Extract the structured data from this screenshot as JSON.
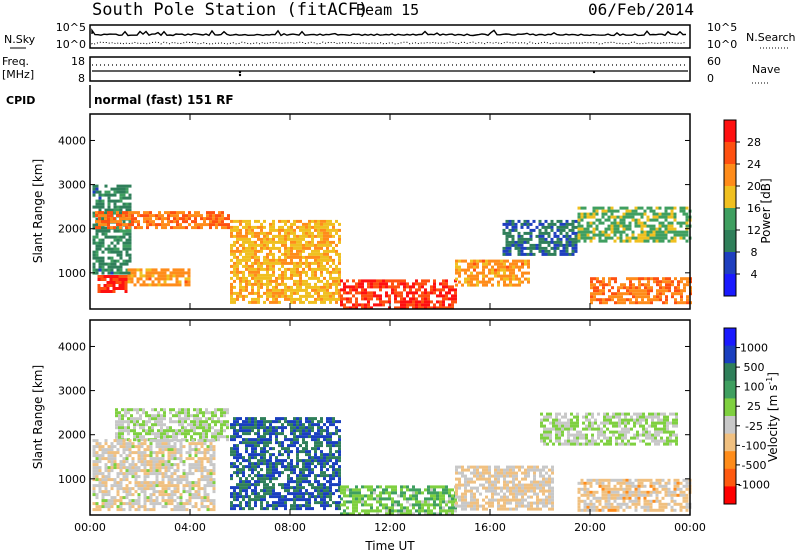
{
  "header": {
    "station": "South Pole Station (fitACF)",
    "beam": "Beam 15",
    "date": "06/Feb/2014"
  },
  "strip": {
    "nsky_label": "N.Sky",
    "nsky_tick_hi": "10^5",
    "nsky_tick_lo": "10^0",
    "nsearch_label": "N.Search",
    "nsearch_tick_hi": "10^5",
    "nsearch_tick_lo": "10^0",
    "freq_label_1": "Freq.",
    "freq_label_2": "[MHz]",
    "freq_tick_hi": "18",
    "freq_tick_lo": "8",
    "nave_label": "Nave",
    "nave_tick_hi": "60",
    "nave_tick_lo": "0",
    "cpid_label": "CPID",
    "cpid_text": "normal (fast) 151 RF"
  },
  "colors": {
    "power_scale": [
      "#1a1aff",
      "#1f3fbf",
      "#2f7f5a",
      "#3f9f60",
      "#f0c020",
      "#ff8c1a",
      "#ff5010",
      "#ff1010"
    ],
    "velocity_scale": [
      "#ff0000",
      "#ff5a10",
      "#ff8c1a",
      "#f0c080",
      "#c8c8c8",
      "#7fd040",
      "#3f9f60",
      "#2f7f5a",
      "#1a3fbf",
      "#1a1aff"
    ]
  },
  "chart_data": [
    {
      "type": "heatmap",
      "title": "",
      "xlabel": "",
      "ylabel": "Slant Range [km]",
      "xlim": [
        "00:00",
        "00:00"
      ],
      "ylim": [
        180,
        4600
      ],
      "x_ticks": [
        "00:00",
        "04:00",
        "08:00",
        "12:00",
        "16:00",
        "20:00",
        "00:00"
      ],
      "y_ticks": [
        1000,
        2000,
        3000,
        4000
      ],
      "colorbar": {
        "label": "Power [dB]",
        "ticks": [
          "28",
          "24",
          "20",
          "16",
          "12",
          "8",
          "4"
        ],
        "range": [
          0,
          30
        ]
      },
      "regions": [
        {
          "t_start": 0.1,
          "t_end": 1.6,
          "r_start": 1000,
          "r_end": 3000,
          "value": 10
        },
        {
          "t_start": 0.2,
          "t_end": 5.5,
          "r_start": 2050,
          "r_end": 2400,
          "value": 22
        },
        {
          "t_start": 0.3,
          "t_end": 1.5,
          "r_start": 600,
          "r_end": 950,
          "value": 27
        },
        {
          "t_start": 1.5,
          "t_end": 4.0,
          "r_start": 700,
          "r_end": 1100,
          "value": 20
        },
        {
          "t_start": 5.6,
          "t_end": 10.0,
          "r_start": 300,
          "r_end": 2200,
          "value": 18
        },
        {
          "t_start": 10.0,
          "t_end": 14.6,
          "r_start": 200,
          "r_end": 850,
          "value": 26
        },
        {
          "t_start": 14.6,
          "t_end": 17.5,
          "r_start": 700,
          "r_end": 1300,
          "value": 20
        },
        {
          "t_start": 16.5,
          "t_end": 19.5,
          "r_start": 1400,
          "r_end": 2200,
          "value": 8
        },
        {
          "t_start": 19.5,
          "t_end": 24.0,
          "r_start": 1700,
          "r_end": 2500,
          "value": 14
        },
        {
          "t_start": 20.0,
          "t_end": 24.0,
          "r_start": 300,
          "r_end": 900,
          "value": 22
        }
      ]
    },
    {
      "type": "heatmap",
      "title": "",
      "xlabel": "Time UT",
      "ylabel": "Slant Range [km]",
      "xlim": [
        "00:00",
        "00:00"
      ],
      "ylim": [
        180,
        4600
      ],
      "x_ticks": [
        "00:00",
        "04:00",
        "08:00",
        "12:00",
        "16:00",
        "20:00",
        "00:00"
      ],
      "y_ticks": [
        1000,
        2000,
        3000,
        4000
      ],
      "colorbar": {
        "label": "Velocity [m s^-1]",
        "ticks": [
          "1000",
          "500",
          "100",
          "25",
          "-25",
          "-100",
          "-500",
          "-1000"
        ],
        "range": [
          -1000,
          1000
        ]
      },
      "regions": [
        {
          "t_start": 1.0,
          "t_end": 5.5,
          "r_start": 1900,
          "r_end": 2600,
          "value": 0
        },
        {
          "t_start": 0.1,
          "t_end": 5.0,
          "r_start": 300,
          "r_end": 1900,
          "value": -150
        },
        {
          "t_start": 5.6,
          "t_end": 10.0,
          "r_start": 300,
          "r_end": 2400,
          "value": 600
        },
        {
          "t_start": 10.0,
          "t_end": 14.6,
          "r_start": 200,
          "r_end": 850,
          "value": 150
        },
        {
          "t_start": 14.6,
          "t_end": 18.5,
          "r_start": 300,
          "r_end": 1300,
          "value": -200
        },
        {
          "t_start": 18.0,
          "t_end": 23.5,
          "r_start": 1800,
          "r_end": 2500,
          "value": 0
        },
        {
          "t_start": 19.5,
          "t_end": 24.0,
          "r_start": 300,
          "r_end": 1000,
          "value": -250
        }
      ]
    }
  ]
}
